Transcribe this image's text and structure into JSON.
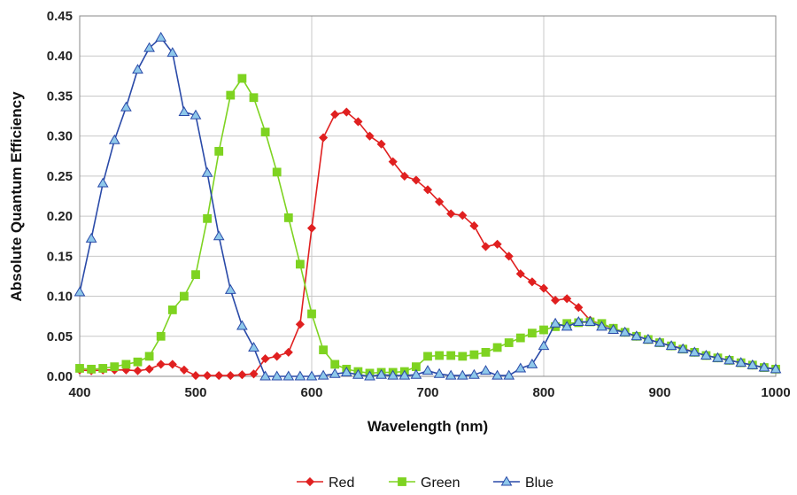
{
  "chart_data": {
    "type": "line",
    "title": "",
    "xlabel": "Wavelength (nm)",
    "ylabel": "Absolute Quantum Efficiency",
    "xlim": [
      400,
      1000
    ],
    "ylim": [
      0,
      0.45
    ],
    "xticks": [
      400,
      500,
      600,
      700,
      800,
      900,
      1000
    ],
    "yticks": [
      0.0,
      0.05,
      0.1,
      0.15,
      0.2,
      0.25,
      0.3,
      0.35,
      0.4,
      0.45
    ],
    "xtick_labels": [
      "400",
      "500",
      "600",
      "700",
      "800",
      "900",
      "1000"
    ],
    "ytick_labels": [
      "0.00",
      "0.05",
      "0.10",
      "0.15",
      "0.20",
      "0.25",
      "0.30",
      "0.35",
      "0.40",
      "0.45"
    ],
    "grid": {
      "vertical_at": [
        600,
        800
      ],
      "horizontal": true
    },
    "legend_position": "bottom-center",
    "series": [
      {
        "name": "Red",
        "color": "#e02020",
        "marker": "diamond",
        "x": [
          400,
          410,
          420,
          430,
          440,
          450,
          460,
          470,
          480,
          490,
          500,
          510,
          520,
          530,
          540,
          550,
          560,
          570,
          580,
          590,
          600,
          610,
          620,
          630,
          640,
          650,
          660,
          670,
          680,
          690,
          700,
          710,
          720,
          730,
          740,
          750,
          760,
          770,
          780,
          790,
          800,
          810,
          820,
          830,
          840,
          850,
          860,
          870,
          880,
          890,
          900,
          910,
          920,
          930,
          940,
          950,
          960,
          970,
          980,
          990,
          1000
        ],
        "y": [
          0.008,
          0.007,
          0.008,
          0.008,
          0.008,
          0.007,
          0.009,
          0.015,
          0.015,
          0.008,
          0.001,
          0.001,
          0.001,
          0.001,
          0.002,
          0.003,
          0.022,
          0.025,
          0.03,
          0.065,
          0.185,
          0.298,
          0.327,
          0.33,
          0.318,
          0.3,
          0.29,
          0.268,
          0.25,
          0.245,
          0.233,
          0.218,
          0.203,
          0.201,
          0.188,
          0.162,
          0.165,
          0.15,
          0.128,
          0.118,
          0.11,
          0.095,
          0.097,
          0.086,
          0.07,
          0.065,
          0.06,
          0.055,
          0.05,
          0.046,
          0.042,
          0.038,
          0.035,
          0.03,
          0.026,
          0.023,
          0.02,
          0.017,
          0.014,
          0.011,
          0.009
        ]
      },
      {
        "name": "Green",
        "color": "#7ed321",
        "marker": "square",
        "x": [
          400,
          410,
          420,
          430,
          440,
          450,
          460,
          470,
          480,
          490,
          500,
          510,
          520,
          530,
          540,
          550,
          560,
          570,
          580,
          590,
          600,
          610,
          620,
          630,
          640,
          650,
          660,
          670,
          680,
          690,
          700,
          710,
          720,
          730,
          740,
          750,
          760,
          770,
          780,
          790,
          800,
          810,
          820,
          830,
          840,
          850,
          860,
          870,
          880,
          890,
          900,
          910,
          920,
          930,
          940,
          950,
          960,
          970,
          980,
          990,
          1000
        ],
        "y": [
          0.01,
          0.009,
          0.01,
          0.012,
          0.015,
          0.018,
          0.025,
          0.05,
          0.083,
          0.1,
          0.127,
          0.197,
          0.281,
          0.351,
          0.372,
          0.348,
          0.305,
          0.255,
          0.198,
          0.14,
          0.078,
          0.033,
          0.015,
          0.009,
          0.006,
          0.004,
          0.005,
          0.005,
          0.006,
          0.012,
          0.025,
          0.026,
          0.026,
          0.025,
          0.027,
          0.03,
          0.036,
          0.042,
          0.048,
          0.054,
          0.058,
          0.062,
          0.066,
          0.067,
          0.068,
          0.066,
          0.06,
          0.055,
          0.05,
          0.046,
          0.042,
          0.038,
          0.034,
          0.03,
          0.026,
          0.023,
          0.02,
          0.017,
          0.014,
          0.011,
          0.009
        ]
      },
      {
        "name": "Blue",
        "color": "#2a4aa8",
        "marker_fill": "#8ec8ea",
        "marker": "triangle",
        "x": [
          400,
          410,
          420,
          430,
          440,
          450,
          460,
          470,
          480,
          490,
          500,
          510,
          520,
          530,
          540,
          550,
          560,
          570,
          580,
          590,
          600,
          610,
          620,
          630,
          640,
          650,
          660,
          670,
          680,
          690,
          700,
          710,
          720,
          730,
          740,
          750,
          760,
          770,
          780,
          790,
          800,
          810,
          820,
          830,
          840,
          850,
          860,
          870,
          880,
          890,
          900,
          910,
          920,
          930,
          940,
          950,
          960,
          970,
          980,
          990,
          1000
        ],
        "y": [
          0.105,
          0.172,
          0.241,
          0.295,
          0.336,
          0.383,
          0.41,
          0.423,
          0.404,
          0.33,
          0.326,
          0.254,
          0.175,
          0.108,
          0.063,
          0.036,
          0.0,
          0.0,
          0.0,
          0.0,
          0.0,
          0.001,
          0.003,
          0.005,
          0.002,
          0.0,
          0.002,
          0.001,
          0.001,
          0.002,
          0.007,
          0.003,
          0.001,
          0.001,
          0.002,
          0.007,
          0.001,
          0.001,
          0.01,
          0.015,
          0.038,
          0.066,
          0.062,
          0.068,
          0.068,
          0.062,
          0.058,
          0.055,
          0.05,
          0.046,
          0.042,
          0.038,
          0.034,
          0.03,
          0.026,
          0.023,
          0.02,
          0.017,
          0.014,
          0.011,
          0.009
        ]
      }
    ]
  }
}
